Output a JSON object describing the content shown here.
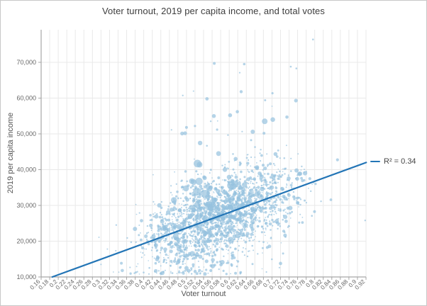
{
  "chart_data": {
    "type": "scatter",
    "title": "Voter turnout, 2019 per capita income, and total votes",
    "xlabel": "Voter turnout",
    "ylabel": "2019 per capita income",
    "legend": {
      "label": "R² = 0.34",
      "position": "right-middle"
    },
    "grid": true,
    "x_domain": [
      0.16,
      0.92
    ],
    "x_ticks": [
      "0.16",
      "0.18",
      "0.2",
      "0.22",
      "0.24",
      "0.26",
      "0.28",
      "0.3",
      "0.32",
      "0.34",
      "0.36",
      "0.38",
      "0.4",
      "0.42",
      "0.44",
      "0.46",
      "0.48",
      "0.5",
      "0.52",
      "0.54",
      "0.56",
      "0.58",
      "0.6",
      "0.62",
      "0.64",
      "0.66",
      "0.68",
      "0.7",
      "0.72",
      "0.74",
      "0.76",
      "0.78",
      "0.8",
      "0.82",
      "0.84",
      "0.86",
      "0.88",
      "0.9",
      "0.92"
    ],
    "y_ticks": [
      {
        "value": 10000,
        "label": "10,000"
      },
      {
        "value": 20000,
        "label": "20,000"
      },
      {
        "value": 30000,
        "label": "30,000"
      },
      {
        "value": 40000,
        "label": "40,000"
      },
      {
        "value": 50000,
        "label": "50,000"
      },
      {
        "value": 60000,
        "label": "60,000"
      },
      {
        "value": 70000,
        "label": "70,000"
      }
    ],
    "y_domain": [
      10000,
      79000
    ],
    "trendline": {
      "x1": 0.186,
      "y1": 10000,
      "x2": 0.9205,
      "y2": 42000,
      "r_squared": 0.34
    },
    "notable_points": [
      [
        0.796,
        76400,
        1.3
      ],
      [
        0.565,
        69700,
        2.0
      ],
      [
        0.635,
        69500,
        1.8
      ],
      [
        0.744,
        68800,
        1.3
      ],
      [
        0.757,
        68300,
        1.3
      ],
      [
        0.628,
        61800,
        2.2
      ],
      [
        0.548,
        59800,
        2.4
      ],
      [
        0.756,
        59300,
        2.6
      ],
      [
        0.684,
        59400,
        1.5
      ],
      [
        0.602,
        55200,
        2.8
      ],
      [
        0.564,
        55000,
        2.8
      ],
      [
        0.619,
        56200,
        2.3
      ],
      [
        0.683,
        53500,
        4.0
      ],
      [
        0.702,
        54000,
        3.3
      ],
      [
        0.735,
        54700,
        2.3
      ],
      [
        0.655,
        50600,
        3.0
      ],
      [
        0.5,
        51800,
        2.0
      ],
      [
        0.52,
        52200,
        1.6
      ],
      [
        0.544,
        33200,
        5.8
      ],
      [
        0.609,
        35300,
        4.8
      ],
      [
        0.553,
        30300,
        4.6
      ],
      [
        0.525,
        30200,
        4.2
      ],
      [
        0.564,
        31400,
        4.3
      ],
      [
        0.575,
        44500,
        3.4
      ],
      [
        0.59,
        40000,
        3.2
      ],
      [
        0.615,
        43000,
        2.8
      ],
      [
        0.92,
        25800,
        1.2
      ],
      [
        0.3,
        13500,
        1.1
      ],
      [
        0.315,
        17800,
        1.0
      ]
    ],
    "point_cloud": {
      "seed": 1337,
      "count": 2200,
      "x": {
        "mean": 0.575,
        "sd": 0.092,
        "min": 0.295,
        "max": 0.922,
        "thin_below": 0.42,
        "keep_left": 0.55,
        "thin_above": 0.78,
        "keep_right": 0.45
      },
      "y": {
        "sd_up": 5200,
        "sd_down": 6800,
        "bump1_p": 0.065,
        "bump1_span": 13000,
        "bump2_p": 0.008,
        "bump2_base": 13000,
        "bump2_span": 22000,
        "min": 10800,
        "max": 78000
      },
      "size_tiers": [
        {
          "p": 0.6,
          "base": 0.8,
          "span": 0.5
        },
        {
          "p": 0.86,
          "base": 1.3,
          "span": 0.8
        },
        {
          "p": 0.986,
          "base": 2.1,
          "span": 1.1
        },
        {
          "p": 0.996,
          "base": 3.3,
          "span": 1.1
        },
        {
          "p": 1.01,
          "base": 4.5,
          "span": 1.5
        }
      ],
      "big": {
        "x_mean": 0.56,
        "x_sd": 0.05,
        "y_offset": 4000,
        "y_sd": 7000
      }
    },
    "colors": {
      "point": "#96c2de",
      "point_opacity": 0.7,
      "trend": "#2375b6",
      "grid": "#e9e9e9",
      "axis": "#a6a6a6",
      "tick_text": "#666666",
      "axis_title": "#555555",
      "title": "#3d3d3d",
      "legend_text": "#444444",
      "border": "#c8c8c8"
    }
  }
}
